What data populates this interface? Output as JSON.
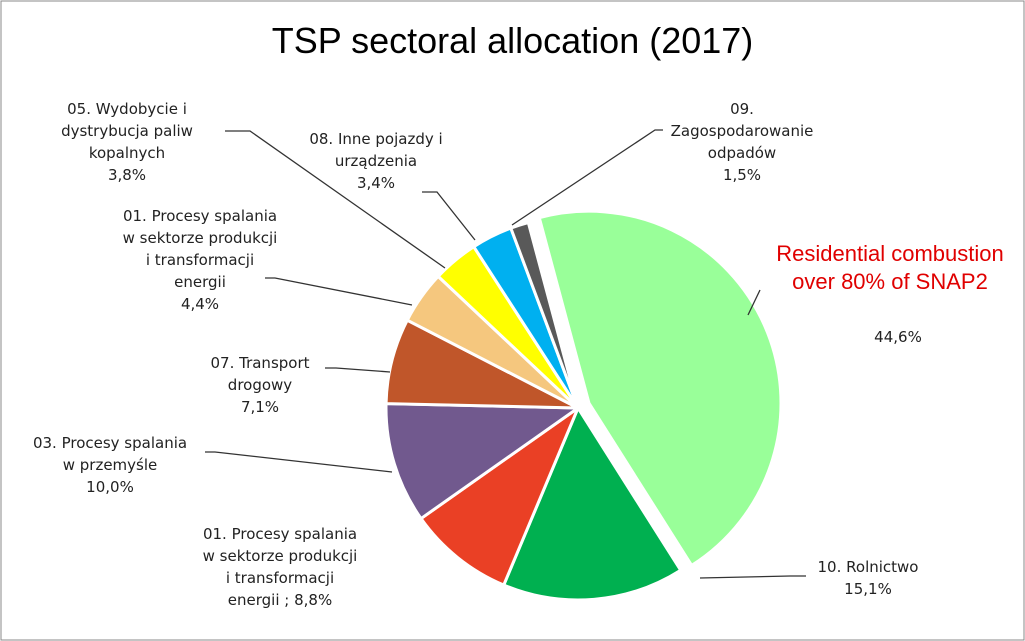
{
  "chart_data": {
    "type": "pie",
    "title": "TSP sectoral allocation (2017)",
    "annotation": "Residential combustion\nover 80% of SNAP2",
    "categories": [
      null,
      "10. Rolnictwo",
      "01. Procesy spalania\nw sektorze produkcji\ni transformacji\nenergii ;",
      "03. Procesy spalania\nw przemyśle",
      "07. Transport\ndrogowy",
      "01. Procesy spalania\nw sektorze produkcji\ni transformacji\nenergii",
      "05. Wydobycie i\ndystrybucja paliw\nkopalnych",
      "08. Inne pojazdy i\nurządzenia",
      "09.\nZagospodarowanie\nodpadów"
    ],
    "values": [
      44.6,
      15.1,
      8.8,
      10.0,
      7.1,
      4.4,
      3.8,
      3.4,
      1.5
    ],
    "value_labels": [
      "44,6%",
      "15,1%",
      "8,8%",
      "10,0%",
      "7,1%",
      "4,4%",
      "3,8%",
      "3,4%",
      "1,5%"
    ],
    "colors": [
      "#99ff99",
      "#00b050",
      "#ea4025",
      "#71598e",
      "#c0562a",
      "#f5c77e",
      "#ffff00",
      "#00b0f0",
      "#595959"
    ]
  }
}
